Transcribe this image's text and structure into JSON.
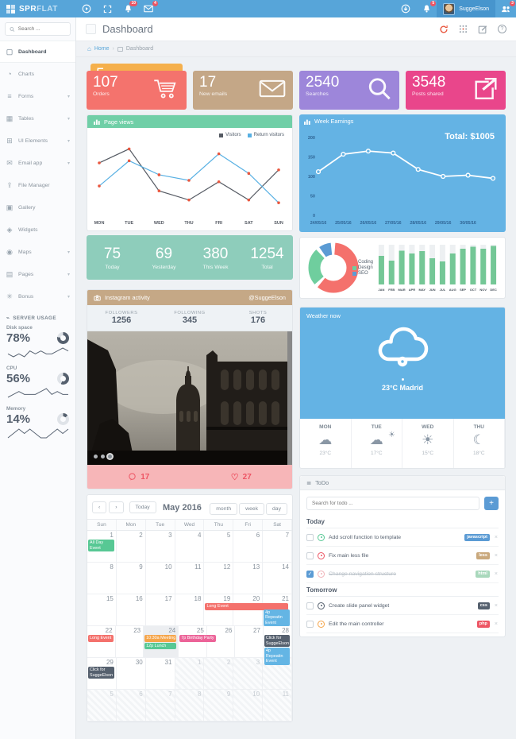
{
  "navbar": {
    "logo_prefix": "SPR",
    "logo_suffix": "FLAT",
    "username": "SuggeElson",
    "badges": {
      "alerts": "10",
      "messages": "4",
      "notifications": "5",
      "users": "3"
    }
  },
  "sidebar": {
    "search_placeholder": "Search ...",
    "items": [
      {
        "label": "Dashboard",
        "glyph": "▢",
        "active": true
      },
      {
        "label": "Charts",
        "glyph": "◔"
      },
      {
        "label": "Forms",
        "glyph": "≡",
        "chevron": true
      },
      {
        "label": "Tables",
        "glyph": "▦",
        "chevron": true
      },
      {
        "label": "UI Elements",
        "glyph": "⊞",
        "chevron": true
      },
      {
        "label": "Email app",
        "glyph": "✉",
        "chevron": true
      },
      {
        "label": "File Manager",
        "glyph": "⇪"
      },
      {
        "label": "Gallery",
        "glyph": "▣"
      },
      {
        "label": "Widgets",
        "glyph": "◈"
      },
      {
        "label": "Maps",
        "glyph": "◉",
        "chevron": true
      },
      {
        "label": "Pages",
        "glyph": "▤",
        "chevron": true
      },
      {
        "label": "Bonus",
        "glyph": "✳",
        "chevron": true
      }
    ],
    "server_usage": {
      "title": "SERVER USAGE",
      "metrics": [
        {
          "label": "Disk space",
          "value": "78%",
          "pct": 78
        },
        {
          "label": "CPU",
          "value": "56%",
          "pct": 56
        },
        {
          "label": "Memory",
          "value": "14%",
          "pct": 14
        }
      ]
    }
  },
  "header": {
    "title": "Dashboard",
    "breadcrumb": {
      "home": "Home",
      "sep": "›",
      "current": "Dashboard"
    }
  },
  "stat_cards": [
    {
      "value": "107",
      "label": "Orders",
      "color": "#f4736d",
      "icon": "cart",
      "peek_value": "5",
      "peek_color": "#f5b04c"
    },
    {
      "value": "17",
      "label": "New emails",
      "color": "#c4a787",
      "icon": "envelope"
    },
    {
      "value": "2540",
      "label": "Searches",
      "color": "#9d86da",
      "icon": "search"
    },
    {
      "value": "3548",
      "label": "Posts shared",
      "color": "#e9468b",
      "icon": "share"
    }
  ],
  "page_views": {
    "title": "Page views"
  },
  "week_earnings": {
    "title": "Week Earnings",
    "total": "Total: $1005"
  },
  "visits": [
    {
      "value": "75",
      "label": "Today"
    },
    {
      "value": "69",
      "label": "Yesterday"
    },
    {
      "value": "380",
      "label": "This Week"
    },
    {
      "value": "1254",
      "label": "Total"
    }
  ],
  "instagram": {
    "title": "Instagram activity",
    "handle": "@SuggeElson",
    "stats": [
      {
        "label": "FOLLOWERS",
        "value": "1256"
      },
      {
        "label": "FOLLOWING",
        "value": "345"
      },
      {
        "label": "SHOTS",
        "value": "176"
      }
    ],
    "comments": "17",
    "likes": "27"
  },
  "weather": {
    "title": "Weather now",
    "now": "23°C Madrid",
    "forecast": [
      {
        "day": "MON",
        "icon": "cloud",
        "temp": "23°C"
      },
      {
        "day": "TUE",
        "icon": "sun-cloud",
        "temp": "17°C"
      },
      {
        "day": "WED",
        "icon": "sun",
        "temp": "15°C"
      },
      {
        "day": "THU",
        "icon": "moon",
        "temp": "18°C"
      }
    ]
  },
  "todo": {
    "title": "ToDo",
    "search_placeholder": "Search for todo ...",
    "add_label": "+",
    "sections": [
      {
        "title": "Today",
        "items": [
          {
            "label": "Add scroll function to template",
            "badge": "javascript",
            "badge_color": "#5b9bd4",
            "status_color": "#57c894"
          },
          {
            "label": "Fix main less file",
            "badge": "less",
            "badge_color": "#c9a87c",
            "status_color": "#ed5564"
          },
          {
            "label": "Change navigation structure",
            "badge": "html",
            "badge_color": "#a9d8bc",
            "status_color": "#f0b3b8",
            "done": true
          }
        ]
      },
      {
        "title": "Tomorrow",
        "items": [
          {
            "label": "Create slide panel widget",
            "badge": "css",
            "badge_color": "#55606e",
            "status_color": "#55606e"
          },
          {
            "label": "Edit the main controller",
            "badge": "php",
            "badge_color": "#ed5564",
            "status_color": "#f5a54a"
          }
        ]
      }
    ]
  },
  "calendar": {
    "prev": "‹",
    "next": "›",
    "today_label": "Today",
    "title": "May 2016",
    "views": [
      "month",
      "week",
      "day"
    ],
    "day_names": [
      "Sun",
      "Mon",
      "Tue",
      "Wed",
      "Thu",
      "Fri",
      "Sat"
    ],
    "event_colors": {
      "green": "#57c894",
      "red": "#f4716c",
      "blue": "#64b5e4",
      "orange": "#f5a54a",
      "pink": "#ec6398",
      "dark": "#55606e"
    },
    "weeks": [
      {
        "days": [
          {
            "n": 1,
            "events": [
              {
                "t": "All Day Event",
                "c": "green"
              }
            ]
          },
          {
            "n": 2
          },
          {
            "n": 3
          },
          {
            "n": 4
          },
          {
            "n": 5
          },
          {
            "n": 6
          },
          {
            "n": 7
          }
        ]
      },
      {
        "days": [
          {
            "n": 8
          },
          {
            "n": 9
          },
          {
            "n": 10
          },
          {
            "n": 11
          },
          {
            "n": 12
          },
          {
            "n": 13
          },
          {
            "n": 14
          }
        ]
      },
      {
        "days": [
          {
            "n": 15
          },
          {
            "n": 16
          },
          {
            "n": 17
          },
          {
            "n": 18
          },
          {
            "n": 19,
            "events": [
              {
                "t": "Long Event",
                "c": "red",
                "span": 3,
                "nowrap": true
              }
            ]
          },
          {
            "n": 20
          },
          {
            "n": 21,
            "events": [
              {
                "t": "",
                "c": "none"
              },
              {
                "t": "4p Repeatin Event",
                "c": "blue"
              }
            ]
          }
        ]
      },
      {
        "days": [
          {
            "n": 22,
            "events": [
              {
                "t": "Long Event",
                "c": "red",
                "nowrap": true
              }
            ]
          },
          {
            "n": 23
          },
          {
            "n": 24,
            "today": true,
            "events": [
              {
                "t": "10:30a Meeting",
                "c": "orange",
                "nowrap": true
              },
              {
                "t": "12p Lunch",
                "c": "green",
                "nowrap": true
              }
            ]
          },
          {
            "n": 25,
            "events": [
              {
                "t": "7p Birthday Party",
                "c": "pink",
                "span": 1.4
              }
            ]
          },
          {
            "n": 26
          },
          {
            "n": 27
          },
          {
            "n": 28,
            "events": [
              {
                "t": "Click for SuggeElson",
                "c": "dark"
              },
              {
                "t": "4p Repeatin Event",
                "c": "blue"
              }
            ]
          }
        ]
      },
      {
        "days": [
          {
            "n": 29,
            "events": [
              {
                "t": "Click for SuggeElson",
                "c": "dark"
              }
            ]
          },
          {
            "n": 30
          },
          {
            "n": 31
          },
          {
            "n": 1,
            "muted": true
          },
          {
            "n": 2,
            "muted": true
          },
          {
            "n": 3,
            "muted": true
          },
          {
            "n": 4,
            "muted": true
          }
        ]
      },
      {
        "days": [
          {
            "n": 5,
            "muted": true
          },
          {
            "n": 6,
            "muted": true
          },
          {
            "n": 7,
            "muted": true
          },
          {
            "n": 8,
            "muted": true
          },
          {
            "n": 9,
            "muted": true
          },
          {
            "n": 10,
            "muted": true
          },
          {
            "n": 11,
            "muted": true
          }
        ]
      }
    ]
  },
  "chart_data": [
    {
      "type": "line",
      "title": "Page views",
      "x": [
        "MON",
        "TUE",
        "WED",
        "THU",
        "FRI",
        "SAT",
        "SUN"
      ],
      "series": [
        {
          "name": "Visitors",
          "color": "#555a63",
          "values": [
            75,
            95,
            35,
            22,
            48,
            22,
            65
          ]
        },
        {
          "name": "Return visitors",
          "color": "#58b0e3",
          "values": [
            42,
            78,
            58,
            50,
            88,
            60,
            18
          ]
        }
      ],
      "marker_color": "#e9573f",
      "ylim": [
        0,
        100
      ],
      "grid": false,
      "legend_position": "top-right"
    },
    {
      "type": "line",
      "title": "Week Earnings",
      "annotation": "Total: $1005",
      "x": [
        "24/05/16",
        "25/05/16",
        "26/05/16",
        "27/05/16",
        "28/05/16",
        "29/05/16",
        "30/05/16",
        ""
      ],
      "series": [
        {
          "name": "Earnings",
          "color": "#ffffff",
          "values": [
            112,
            157,
            165,
            160,
            118,
            100,
            103,
            95
          ]
        }
      ],
      "yticks": [
        0,
        50,
        100,
        150,
        200
      ],
      "ylim": [
        0,
        200
      ],
      "grid": false
    },
    {
      "type": "pie",
      "donut": true,
      "labels": [
        "Coding",
        "Design",
        "SEO"
      ],
      "values": [
        60,
        26,
        10
      ],
      "colors": [
        "#f4716c",
        "#6fce9e",
        "#5b9bd4"
      ]
    },
    {
      "type": "bar",
      "categories": [
        "JAN",
        "FEB",
        "MAR",
        "APR",
        "MAY",
        "JUN",
        "JUL",
        "AUG",
        "SEP",
        "OCT",
        "NOV",
        "DEC"
      ],
      "values": [
        72,
        60,
        85,
        78,
        84,
        66,
        58,
        78,
        90,
        95,
        90,
        97
      ],
      "color": "#74c796",
      "track_color": "#edf0f2",
      "ylim": [
        0,
        100
      ]
    },
    {
      "type": "line",
      "title": "Disk space sparkline",
      "series": [
        {
          "name": "Disk",
          "color": "#5b6675",
          "values": [
            2,
            1,
            2,
            1,
            3,
            2,
            3,
            2,
            2,
            3,
            4,
            3
          ]
        }
      ]
    },
    {
      "type": "line",
      "title": "CPU sparkline",
      "series": [
        {
          "name": "CPU",
          "color": "#5b6675",
          "values": [
            1,
            2,
            3,
            2,
            2,
            2,
            3,
            4,
            2,
            3,
            2,
            2
          ]
        }
      ]
    },
    {
      "type": "line",
      "title": "Memory sparkline",
      "series": [
        {
          "name": "Memory",
          "color": "#5b6675",
          "values": [
            1,
            2,
            3,
            2,
            3,
            2,
            1,
            1,
            2,
            3,
            2,
            3
          ]
        }
      ]
    }
  ]
}
